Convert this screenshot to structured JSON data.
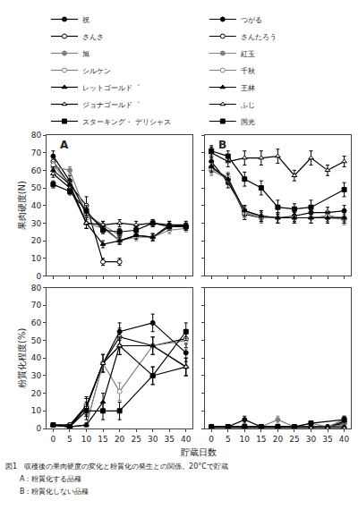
{
  "chart_data": [
    {
      "type": "line",
      "title": "A",
      "ylabel": "果肉硬度(N)",
      "x": [
        0,
        5,
        10,
        15,
        20,
        25,
        30,
        35,
        40
      ],
      "xlim": [
        -2,
        42
      ],
      "xticks": [
        0,
        5,
        10,
        15,
        20,
        25,
        30,
        35,
        40
      ],
      "ylim": [
        0,
        80
      ],
      "yticks": [
        0,
        10,
        20,
        30,
        40,
        50,
        60,
        70,
        80
      ],
      "grid": false,
      "legend": "top",
      "tick_labels": "y",
      "series": [
        {
          "name": "祝",
          "color": "black",
          "marker": "circle",
          "values": [
            68,
            54,
            35,
            28,
            20,
            23,
            22,
            28,
            28
          ],
          "errors": [
            3,
            3,
            3,
            3,
            2,
            2,
            2,
            2,
            2
          ]
        },
        {
          "name": "さんさ",
          "color": "black",
          "marker": "circle-open",
          "values": [
            65,
            52,
            40,
            8,
            8,
            null,
            null,
            null,
            null
          ],
          "errors": [
            2,
            2,
            5,
            2,
            2,
            null,
            null,
            null,
            null
          ]
        },
        {
          "name": "旭",
          "color": "gray",
          "marker": "circle",
          "values": [
            62,
            60,
            35,
            29,
            23,
            null,
            null,
            null,
            null
          ],
          "errors": [
            2,
            2,
            3,
            2,
            2,
            null,
            null,
            null,
            null
          ]
        },
        {
          "name": "シルケン",
          "color": "gray",
          "marker": "circle-open",
          "values": [
            63,
            52,
            30,
            27,
            20,
            22,
            22,
            26,
            27
          ],
          "errors": [
            2,
            2,
            3,
            2,
            2,
            2,
            2,
            2,
            2
          ]
        },
        {
          "name": "レットゴールド゜",
          "color": "black",
          "marker": "triangle-up",
          "values": [
            60,
            52,
            30,
            18,
            20,
            23,
            22,
            29,
            28
          ],
          "errors": [
            2,
            2,
            3,
            2,
            2,
            2,
            2,
            2,
            2
          ]
        },
        {
          "name": "ジョナゴールド゜",
          "color": "black",
          "marker": "triangle-up-open",
          "values": [
            58,
            50,
            30,
            29,
            30,
            29,
            30,
            29,
            29
          ],
          "errors": [
            2,
            2,
            3,
            2,
            2,
            2,
            2,
            2,
            2
          ]
        },
        {
          "name": "スターキング・ デリシャス",
          "color": "black",
          "marker": "square",
          "values": [
            52,
            48,
            37,
            26,
            25,
            26,
            30,
            28,
            28
          ],
          "errors": [
            2,
            2,
            3,
            2,
            2,
            2,
            2,
            2,
            2
          ]
        }
      ]
    },
    {
      "type": "line",
      "title": "B",
      "x": [
        0,
        5,
        10,
        15,
        20,
        25,
        30,
        35,
        40
      ],
      "xlim": [
        -2,
        42
      ],
      "xticks": [
        0,
        5,
        10,
        15,
        20,
        25,
        30,
        35,
        40
      ],
      "ylim": [
        0,
        80
      ],
      "yticks": [
        0,
        10,
        20,
        30,
        40,
        50,
        60,
        70,
        80
      ],
      "grid": false,
      "legend": "top",
      "tick_labels": false,
      "series": [
        {
          "name": "つがる",
          "color": "black",
          "marker": "circle",
          "values": [
            65,
            53,
            37,
            34,
            33,
            34,
            36,
            36,
            37
          ],
          "errors": [
            3,
            3,
            3,
            3,
            3,
            3,
            3,
            3,
            3
          ]
        },
        {
          "name": "さんたろう",
          "color": "black",
          "marker": "circle-open",
          "values": [
            62,
            55,
            35,
            33,
            33,
            33,
            33,
            34,
            33
          ],
          "errors": [
            3,
            3,
            3,
            3,
            3,
            3,
            3,
            3,
            3
          ]
        },
        {
          "name": "紅玉",
          "color": "gray",
          "marker": "circle",
          "values": [
            60,
            55,
            36,
            33,
            33,
            33,
            33,
            33,
            32
          ],
          "errors": [
            3,
            3,
            3,
            3,
            3,
            3,
            3,
            3,
            3
          ]
        },
        {
          "name": "千秋",
          "color": "gray",
          "marker": "circle-open",
          "values": [
            61,
            56,
            36,
            34,
            33,
            33,
            33,
            34,
            33
          ],
          "errors": [
            3,
            3,
            3,
            3,
            3,
            3,
            3,
            3,
            3
          ]
        },
        {
          "name": "王林",
          "color": "black",
          "marker": "triangle-up",
          "values": [
            62,
            55,
            37,
            34,
            33,
            33,
            33,
            33,
            33
          ],
          "errors": [
            3,
            3,
            3,
            3,
            3,
            3,
            3,
            3,
            3
          ]
        },
        {
          "name": "ふじ",
          "color": "black",
          "marker": "triangle-up-open",
          "values": [
            70,
            65,
            67,
            67,
            68,
            57,
            67,
            60,
            65
          ],
          "errors": [
            3,
            3,
            4,
            4,
            4,
            3,
            4,
            3,
            3
          ]
        },
        {
          "name": "国光",
          "color": "black",
          "marker": "square",
          "values": [
            71,
            68,
            55,
            50,
            39,
            38,
            39,
            null,
            49
          ],
          "errors": [
            3,
            3,
            4,
            4,
            4,
            3,
            4,
            null,
            4
          ]
        }
      ]
    },
    {
      "type": "line",
      "ylabel": "粉質化程度(%)",
      "xlabel": "貯蔵日数",
      "x": [
        0,
        5,
        10,
        15,
        20,
        25,
        30,
        35,
        40
      ],
      "xlim": [
        -2,
        42
      ],
      "xticks": [
        0,
        5,
        10,
        15,
        20,
        25,
        30,
        35,
        40
      ],
      "ylim": [
        0,
        80
      ],
      "yticks": [
        0,
        10,
        20,
        30,
        40,
        50,
        60,
        70,
        80
      ],
      "grid": false,
      "annotations": [
        "図1　収穫後の果肉硬度の変化と粉質化の発生との関係。20°Cで貯蔵",
        "　　A：粉質化する品種",
        "　　B：粉質化しない品種"
      ],
      "series": [
        {
          "name": "祝",
          "color": "black",
          "marker": "circle",
          "values": [
            2,
            2,
            12,
            37,
            55,
            null,
            60,
            null,
            43
          ],
          "errors": [
            1,
            1,
            5,
            5,
            5,
            null,
            5,
            null,
            5
          ]
        },
        {
          "name": "さんさ",
          "color": "black",
          "marker": "circle-open",
          "values": [
            2,
            2,
            13,
            37,
            52,
            null,
            47,
            null,
            51
          ],
          "errors": [
            1,
            1,
            5,
            5,
            5,
            null,
            5,
            null,
            5
          ]
        },
        {
          "name": "旭",
          "color": "gray",
          "marker": "circle",
          "values": [
            2,
            1,
            2,
            37,
            47,
            null,
            47,
            null,
            35
          ],
          "errors": [
            1,
            1,
            1,
            5,
            5,
            null,
            5,
            null,
            5
          ]
        },
        {
          "name": "シルケン",
          "color": "gray",
          "marker": "circle-open",
          "values": [
            2,
            1,
            2,
            37,
            21,
            null,
            47,
            null,
            50
          ],
          "errors": [
            1,
            1,
            1,
            5,
            5,
            null,
            5,
            null,
            5
          ]
        },
        {
          "name": "レットゴールド",
          "color": "black",
          "marker": "triangle-up",
          "values": [
            2,
            1,
            2,
            15,
            47,
            null,
            47,
            null,
            35
          ],
          "errors": [
            1,
            1,
            1,
            5,
            5,
            null,
            5,
            null,
            5
          ]
        },
        {
          "name": "ジョナゴールド",
          "color": "black",
          "marker": "triangle-up-open",
          "values": [
            2,
            1,
            12,
            37,
            47,
            null,
            30,
            null,
            35
          ],
          "errors": [
            1,
            1,
            5,
            5,
            5,
            null,
            5,
            null,
            5
          ]
        },
        {
          "name": "スターキング・デリシャス",
          "color": "black",
          "marker": "square",
          "values": [
            2,
            1,
            10,
            10,
            10,
            null,
            30,
            null,
            55
          ],
          "errors": [
            1,
            1,
            5,
            5,
            5,
            null,
            5,
            null,
            5
          ]
        }
      ]
    },
    {
      "type": "line",
      "x": [
        0,
        5,
        10,
        15,
        20,
        25,
        30,
        35,
        40
      ],
      "xlim": [
        -2,
        42
      ],
      "xticks": [
        0,
        5,
        10,
        15,
        20,
        25,
        30,
        35,
        40
      ],
      "ylim": [
        0,
        80
      ],
      "yticks": [
        0,
        10,
        20,
        30,
        40,
        50,
        60,
        70,
        80
      ],
      "grid": false,
      "tick_labels": "x",
      "series": [
        {
          "name": "つがる",
          "color": "black",
          "marker": "circle",
          "values": [
            1,
            1,
            5,
            1,
            1,
            1,
            1,
            1,
            4
          ],
          "errors": [
            1,
            1,
            2,
            1,
            1,
            1,
            1,
            1,
            2
          ]
        },
        {
          "name": "さんたろう",
          "color": "black",
          "marker": "circle-open",
          "values": [
            1,
            1,
            1,
            1,
            1,
            1,
            1,
            1,
            3
          ],
          "errors": [
            1,
            1,
            1,
            1,
            1,
            1,
            1,
            1,
            1
          ]
        },
        {
          "name": "紅玉",
          "color": "gray",
          "marker": "circle",
          "values": [
            1,
            1,
            1,
            1,
            5,
            1,
            3,
            1,
            5
          ],
          "errors": [
            1,
            1,
            1,
            1,
            2,
            1,
            1,
            1,
            2
          ]
        },
        {
          "name": "千秋",
          "color": "gray",
          "marker": "circle-open",
          "values": [
            1,
            1,
            1,
            1,
            1,
            1,
            1,
            1,
            2
          ],
          "errors": [
            1,
            1,
            1,
            1,
            1,
            1,
            1,
            1,
            1
          ]
        },
        {
          "name": "王林",
          "color": "black",
          "marker": "triangle-up",
          "values": [
            1,
            1,
            1,
            1,
            1,
            1,
            1,
            1,
            1
          ],
          "errors": [
            1,
            1,
            1,
            1,
            1,
            1,
            1,
            1,
            1
          ]
        },
        {
          "name": "ふじ",
          "color": "black",
          "marker": "triangle-up-open",
          "values": [
            0,
            0,
            0,
            0,
            0,
            0,
            0,
            0,
            0
          ],
          "errors": [
            0,
            0,
            0,
            0,
            0,
            0,
            0,
            0,
            0
          ]
        },
        {
          "name": "国光",
          "color": "black",
          "marker": "square",
          "values": [
            1,
            1,
            1,
            1,
            1,
            1,
            3,
            null,
            5
          ],
          "errors": [
            1,
            1,
            1,
            1,
            1,
            1,
            1,
            null,
            2
          ]
        }
      ]
    }
  ]
}
